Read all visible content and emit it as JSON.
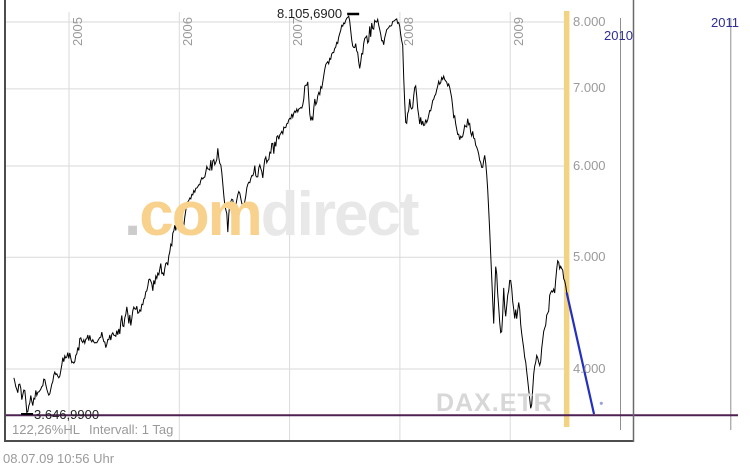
{
  "colors": {
    "background": "#ffffff",
    "grid": "#dadada",
    "future_grid": "#8f8f8f",
    "border": "#4d4d4d",
    "right_border": "#6a6a6a",
    "axis_text": "#9a9a9a",
    "future_year_text": "#2e2e96",
    "price_line": "#000000",
    "trend_line": "#2330c0",
    "trend_marker": "#9aa3dd",
    "today_line": "#f2d382",
    "low_line": "#4e2153",
    "watermark_com": "#f8d28c",
    "watermark_direct": "#e8e8e8",
    "symbol_watermark": "#d7d7d7"
  },
  "watermark": {
    "dot": ".",
    "com": "com",
    "direct": "direct"
  },
  "chart": {
    "symbol_watermark": "DAX.ETR",
    "high_label": "8.105,6900",
    "low_label": "3.646,9900",
    "y_axis_labels": [
      "8.000",
      "7.000",
      "6.000",
      "5.000",
      "4.000"
    ],
    "year_labels": [
      "2005",
      "2006",
      "2007",
      "2008",
      "2009"
    ],
    "future_year_labels": [
      "2010",
      "2011"
    ],
    "footer": {
      "percent_hl": "122,26%HL",
      "interval_label": "Intervall: 1 Tag"
    }
  },
  "statusbar": {
    "date": "08.07.09",
    "time": "10:56 Uhr"
  },
  "chart_data": {
    "type": "line",
    "title": "DAX.ETR",
    "interval": "1 Tag",
    "percent_hl": 122.26,
    "y_scale": "log",
    "y_ticks": [
      8000,
      7000,
      6000,
      5000,
      4000
    ],
    "ylim": [
      3600,
      8300
    ],
    "x_years_past": [
      2005,
      2006,
      2007,
      2008,
      2009
    ],
    "x_years_future": [
      2010,
      2011
    ],
    "high": {
      "t": 2007.54,
      "value": 8105.69
    },
    "low": {
      "t": 2004.62,
      "value": 3646.99
    },
    "low_line": {
      "value": 3646.99
    },
    "today_line": {
      "t": 2009.512
    },
    "trend": {
      "points": [
        [
          2009.512,
          4660
        ],
        [
          2009.76,
          3655
        ]
      ],
      "end_marker": {
        "t": 2009.826,
        "value": 3735
      }
    },
    "series": [
      {
        "name": "DAX.ETR",
        "points": [
          [
            2004.5,
            3930
          ],
          [
            2004.53,
            3820
          ],
          [
            2004.55,
            3870
          ],
          [
            2004.575,
            3790
          ],
          [
            2004.6,
            3840
          ],
          [
            2004.62,
            3646.99
          ],
          [
            2004.65,
            3780
          ],
          [
            2004.675,
            3750
          ],
          [
            2004.7,
            3840
          ],
          [
            2004.73,
            3790
          ],
          [
            2004.77,
            3930
          ],
          [
            2004.82,
            3800
          ],
          [
            2004.87,
            3960
          ],
          [
            2004.91,
            3920
          ],
          [
            2004.95,
            4060
          ],
          [
            2005.0,
            4130
          ],
          [
            2005.05,
            4080
          ],
          [
            2005.1,
            4210
          ],
          [
            2005.17,
            4270
          ],
          [
            2005.24,
            4200
          ],
          [
            2005.3,
            4290
          ],
          [
            2005.33,
            4190
          ],
          [
            2005.38,
            4270
          ],
          [
            2005.43,
            4310
          ],
          [
            2005.47,
            4340
          ],
          [
            2005.52,
            4440
          ],
          [
            2005.56,
            4390
          ],
          [
            2005.6,
            4530
          ],
          [
            2005.64,
            4470
          ],
          [
            2005.69,
            4630
          ],
          [
            2005.73,
            4790
          ],
          [
            2005.76,
            4700
          ],
          [
            2005.8,
            4830
          ],
          [
            2005.83,
            4910
          ],
          [
            2005.86,
            4820
          ],
          [
            2005.9,
            5000
          ],
          [
            2005.94,
            5180
          ],
          [
            2005.97,
            5350
          ],
          [
            2006.0,
            5430
          ],
          [
            2006.03,
            5280
          ],
          [
            2006.07,
            5540
          ],
          [
            2006.11,
            5660
          ],
          [
            2006.15,
            5730
          ],
          [
            2006.19,
            5810
          ],
          [
            2006.23,
            5910
          ],
          [
            2006.27,
            6000
          ],
          [
            2006.31,
            6070
          ],
          [
            2006.35,
            6140
          ],
          [
            2006.39,
            5880
          ],
          [
            2006.44,
            5310
          ],
          [
            2006.47,
            5680
          ],
          [
            2006.5,
            5470
          ],
          [
            2006.54,
            5700
          ],
          [
            2006.58,
            5520
          ],
          [
            2006.62,
            5780
          ],
          [
            2006.66,
            5880
          ],
          [
            2006.72,
            5940
          ],
          [
            2006.78,
            6030
          ],
          [
            2006.84,
            6180
          ],
          [
            2006.9,
            6340
          ],
          [
            2006.96,
            6480
          ],
          [
            2007.02,
            6640
          ],
          [
            2007.07,
            6720
          ],
          [
            2007.11,
            6760
          ],
          [
            2007.14,
            7000
          ],
          [
            2007.17,
            7040
          ],
          [
            2007.19,
            6490
          ],
          [
            2007.23,
            6840
          ],
          [
            2007.28,
            7020
          ],
          [
            2007.33,
            7300
          ],
          [
            2007.38,
            7470
          ],
          [
            2007.43,
            7670
          ],
          [
            2007.47,
            7920
          ],
          [
            2007.51,
            8030
          ],
          [
            2007.54,
            8105.69
          ],
          [
            2007.575,
            7560
          ],
          [
            2007.6,
            7720
          ],
          [
            2007.63,
            7290
          ],
          [
            2007.67,
            7620
          ],
          [
            2007.71,
            7770
          ],
          [
            2007.75,
            7920
          ],
          [
            2007.79,
            8060
          ],
          [
            2007.82,
            7860
          ],
          [
            2007.85,
            7630
          ],
          [
            2007.88,
            7860
          ],
          [
            2007.92,
            7960
          ],
          [
            2007.96,
            8080
          ],
          [
            2008.0,
            7950
          ],
          [
            2008.025,
            7600
          ],
          [
            2008.055,
            6480
          ],
          [
            2008.085,
            6850
          ],
          [
            2008.11,
            6700
          ],
          [
            2008.14,
            7050
          ],
          [
            2008.175,
            6560
          ],
          [
            2008.215,
            6520
          ],
          [
            2008.26,
            6630
          ],
          [
            2008.31,
            6890
          ],
          [
            2008.36,
            7090
          ],
          [
            2008.4,
            7190
          ],
          [
            2008.44,
            7060
          ],
          [
            2008.48,
            6810
          ],
          [
            2008.52,
            6430
          ],
          [
            2008.56,
            6310
          ],
          [
            2008.6,
            6560
          ],
          [
            2008.64,
            6460
          ],
          [
            2008.68,
            6310
          ],
          [
            2008.72,
            6110
          ],
          [
            2008.75,
            5960
          ],
          [
            2008.77,
            6160
          ],
          [
            2008.79,
            5860
          ],
          [
            2008.81,
            5360
          ],
          [
            2008.83,
            4870
          ],
          [
            2008.85,
            4380
          ],
          [
            2008.87,
            4950
          ],
          [
            2008.89,
            4560
          ],
          [
            2008.92,
            4220
          ],
          [
            2008.94,
            4700
          ],
          [
            2008.96,
            4420
          ],
          [
            2008.98,
            4650
          ],
          [
            2009.0,
            4810
          ],
          [
            2009.03,
            4500
          ],
          [
            2009.06,
            4380
          ],
          [
            2009.08,
            4600
          ],
          [
            2009.1,
            4280
          ],
          [
            2009.13,
            4120
          ],
          [
            2009.16,
            3900
          ],
          [
            2009.19,
            3666
          ],
          [
            2009.215,
            3990
          ],
          [
            2009.245,
            4120
          ],
          [
            2009.27,
            4020
          ],
          [
            2009.3,
            4290
          ],
          [
            2009.33,
            4420
          ],
          [
            2009.36,
            4600
          ],
          [
            2009.385,
            4700
          ],
          [
            2009.41,
            4800
          ],
          [
            2009.425,
            4890
          ],
          [
            2009.44,
            4930
          ],
          [
            2009.455,
            4850
          ],
          [
            2009.47,
            4940
          ],
          [
            2009.485,
            4800
          ],
          [
            2009.5,
            4730
          ],
          [
            2009.512,
            4660
          ]
        ]
      }
    ]
  }
}
